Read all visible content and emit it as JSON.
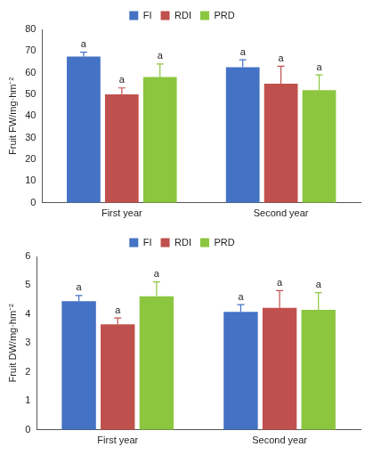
{
  "chart_data": [
    {
      "type": "bar",
      "ylabel": "Fruit FW/mg·hm⁻²",
      "categories": [
        "First year",
        "Second year"
      ],
      "series": [
        {
          "name": "FI",
          "color": "#4472c4",
          "values": [
            67.5,
            62.5
          ],
          "errors": [
            2,
            3.5
          ],
          "annotations": [
            "a",
            "a"
          ]
        },
        {
          "name": "RDI",
          "color": "#c0504d",
          "values": [
            50,
            55
          ],
          "errors": [
            3,
            8
          ],
          "annotations": [
            "a",
            "a"
          ]
        },
        {
          "name": "PRD",
          "color": "#8cc63f",
          "values": [
            58,
            52
          ],
          "errors": [
            6,
            7
          ],
          "annotations": [
            "a",
            "a"
          ]
        }
      ],
      "ylim": [
        0,
        80
      ],
      "yticks": [
        0,
        10,
        20,
        30,
        40,
        50,
        60,
        70,
        80
      ],
      "grid": false,
      "legend": "top"
    },
    {
      "type": "bar",
      "ylabel": "Fruit DW/mg·hm⁻²",
      "categories": [
        "First year",
        "Second year"
      ],
      "series": [
        {
          "name": "FI",
          "color": "#4472c4",
          "values": [
            4.45,
            4.08
          ],
          "errors": [
            0.2,
            0.25
          ],
          "annotations": [
            "a",
            "a"
          ]
        },
        {
          "name": "RDI",
          "color": "#c0504d",
          "values": [
            3.65,
            4.22
          ],
          "errors": [
            0.22,
            0.6
          ],
          "annotations": [
            "a",
            "a"
          ]
        },
        {
          "name": "PRD",
          "color": "#8cc63f",
          "values": [
            4.62,
            4.15
          ],
          "errors": [
            0.5,
            0.6
          ],
          "annotations": [
            "a",
            "a"
          ]
        }
      ],
      "ylim": [
        0,
        6
      ],
      "yticks": [
        0,
        1,
        2,
        3,
        4,
        5,
        6
      ],
      "grid": false,
      "legend": "top"
    }
  ]
}
